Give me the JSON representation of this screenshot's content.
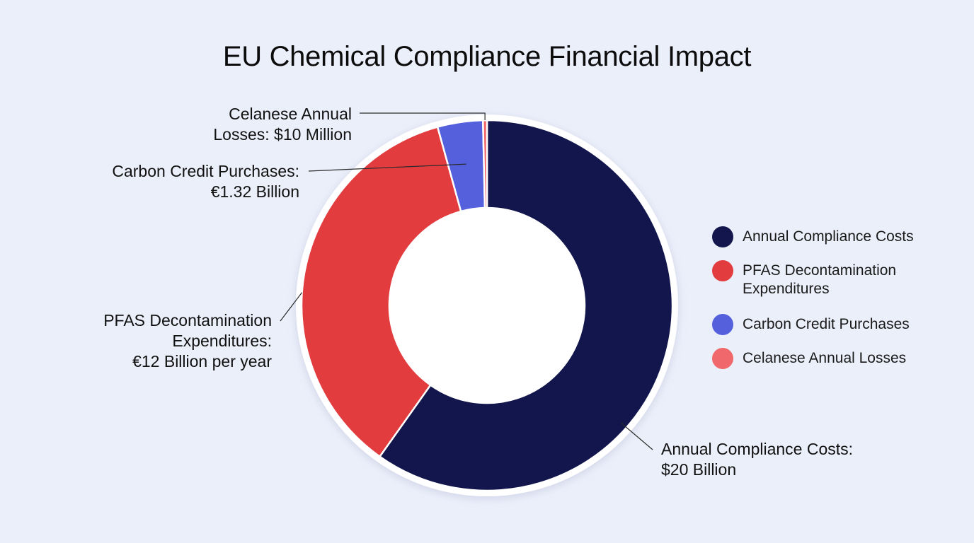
{
  "chart_data": {
    "type": "pie",
    "title": "EU Chemical Compliance Financial Impact",
    "donut": true,
    "slices": [
      {
        "label": "Annual Compliance Costs",
        "value": 20000000000,
        "color": "#13164d",
        "callout": [
          "Annual Compliance Costs:",
          "$20 Billion"
        ]
      },
      {
        "label": "PFAS Decontamination Expenditures",
        "value": 12000000000,
        "color": "#e23c3f",
        "callout": [
          "PFAS Decontamination",
          "Expenditures:",
          "€12 Billion per year"
        ]
      },
      {
        "label": "Carbon Credit Purchases",
        "value": 1320000000,
        "color": "#5560dd",
        "callout": [
          "Carbon Credit Purchases:",
          "€1.32 Billion"
        ]
      },
      {
        "label": "Celanese Annual Losses",
        "value": 10000000,
        "color": "#f0686b",
        "callout": [
          "Celanese Annual",
          "Losses: $10 Million"
        ]
      }
    ],
    "legend": {
      "position": "right",
      "entries": [
        {
          "label": "Annual Compliance Costs",
          "color": "#13164d"
        },
        {
          "label": "PFAS Decontamination Expenditures",
          "color": "#e23c3f"
        },
        {
          "label": "Carbon Credit Purchases",
          "color": "#5560dd"
        },
        {
          "label": "Celanese Annual Losses",
          "color": "#f0686b"
        }
      ]
    }
  }
}
